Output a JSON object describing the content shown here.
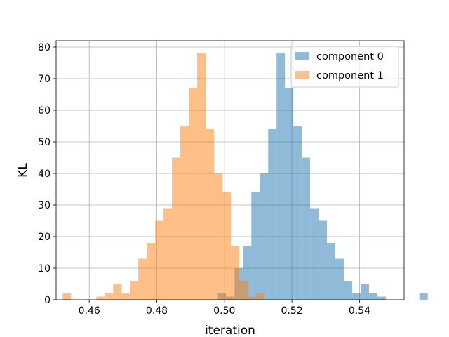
{
  "chart_data": {
    "type": "bar",
    "title": "",
    "xlabel": "iteration",
    "ylabel": "KL",
    "xlim": [
      0.4502,
      0.5532
    ],
    "ylim": [
      0,
      82
    ],
    "xticks": [
      "0.46",
      "0.48",
      "0.50",
      "0.52",
      "0.54"
    ],
    "xtick_values": [
      0.46,
      0.48,
      0.5,
      0.52,
      0.54
    ],
    "yticks": [
      "0",
      "10",
      "20",
      "30",
      "40",
      "50",
      "60",
      "70",
      "80"
    ],
    "ytick_values": [
      0,
      10,
      20,
      30,
      40,
      50,
      60,
      70,
      80
    ],
    "grid": true,
    "legend_position": "upper right",
    "series": [
      {
        "name": "component 0",
        "color": "#1f77b4",
        "alpha": 0.5,
        "bin_start": 0.49804,
        "bin_width": 0.002487,
        "values": [
          2,
          1,
          10,
          17,
          34,
          40,
          54,
          78,
          67,
          55,
          45,
          29,
          25,
          18,
          13,
          6,
          2,
          5,
          2,
          1,
          0,
          0,
          0,
          0,
          2
        ]
      },
      {
        "name": "component 1",
        "color": "#ff7f0e",
        "alpha": 0.5,
        "bin_start": 0.45214,
        "bin_width": 0.002488,
        "values": [
          2,
          0,
          0,
          0,
          1,
          2,
          5,
          2,
          6,
          13,
          18,
          25,
          29,
          45,
          55,
          67,
          78,
          54,
          40,
          34,
          17,
          6,
          1,
          2
        ]
      }
    ]
  }
}
